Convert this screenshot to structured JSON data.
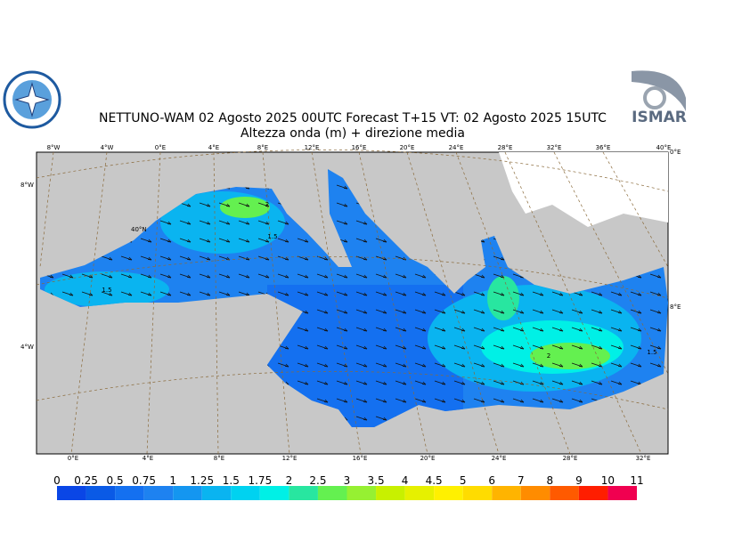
{
  "header": {
    "title": "NETTUNO-WAM  02   Agosto  2025 00UTC Forecast T+15 VT: 02   Agosto  2025 15UTC",
    "subtitle": "Altezza onda (m) + direzione media",
    "logo_text": "ISMAR"
  },
  "map": {
    "top_lon_labels": [
      "8°W",
      "4°W",
      "0°E",
      "4°E",
      "8°E",
      "12°E",
      "16°E",
      "20°E",
      "24°E",
      "28°E",
      "32°E",
      "36°E",
      "40°E"
    ],
    "bottom_lon_labels": [
      "0°E",
      "4°E",
      "8°E",
      "12°E",
      "16°E",
      "20°E",
      "24°E",
      "28°E",
      "32°E"
    ],
    "left_labels": [
      "8°W",
      "4°W"
    ],
    "right_labels": [
      "0°E",
      "8°E"
    ],
    "inner_labels": [
      "40°N"
    ],
    "contour_labels": [
      "1.5",
      "1.5",
      "2",
      "2",
      "1.5"
    ]
  },
  "colorbar": {
    "ticks": [
      0,
      0.25,
      0.5,
      0.75,
      1,
      1.25,
      1.5,
      1.75,
      2,
      2.5,
      3,
      3.5,
      4,
      4.5,
      5,
      6,
      7,
      8,
      9,
      10,
      11
    ],
    "colors": [
      "#0a46e6",
      "#0a5ae6",
      "#1470f0",
      "#1e82f0",
      "#1496f0",
      "#0ab4f0",
      "#00d2f0",
      "#00f0e6",
      "#28e6a0",
      "#64f050",
      "#96f032",
      "#c8f000",
      "#e6f000",
      "#fff000",
      "#ffdc00",
      "#ffb400",
      "#ff8c00",
      "#ff5a00",
      "#ff1e00",
      "#f00050"
    ]
  }
}
